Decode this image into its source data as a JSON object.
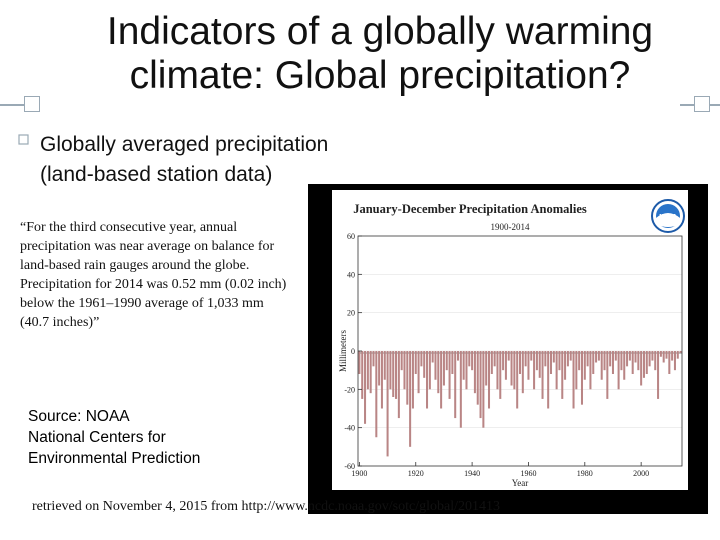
{
  "slide": {
    "title_line1": "Indicators of a globally warming",
    "title_line2": "climate: Global precipitation?",
    "subtitle_line1": "Globally averaged precipitation",
    "subtitle_line2": "(land-based station data)",
    "quote": "“For the third consecutive year, annual precipitation was near average on balance for land-based rain gauges around the globe. Precipitation for 2014 was 0.52 mm (0.02 inch) below the 1961–1990 average of 1,033 mm (40.7 inches)”",
    "source_line1": "Source: NOAA",
    "source_line2": "National Centers for",
    "source_line3": "Environmental Prediction",
    "retrieved": "retrieved on November 4, 2015 from http://www.ncdc.noaa.gov/sotc/global/201413",
    "accent_color": "#9aa9b5"
  },
  "chart_data": {
    "type": "bar",
    "title": "January-December Precipitation Anomalies",
    "subtitle": "1900-2014",
    "xlabel": "Year",
    "ylabel": "Millimeters",
    "xlim": [
      1900,
      2014
    ],
    "ylim": [
      -60,
      60
    ],
    "xticks": [
      "1900",
      "1920",
      "1940",
      "1960",
      "1980",
      "2000"
    ],
    "yticks": [
      "60",
      "40",
      "20",
      "0",
      "-20",
      "-40",
      "-60"
    ],
    "logo": "noaa-logo",
    "positive_color": "#3e9b2e",
    "negative_color": "#b98585",
    "years": [
      1900,
      1901,
      1902,
      1903,
      1904,
      1905,
      1906,
      1907,
      1908,
      1909,
      1910,
      1911,
      1912,
      1913,
      1914,
      1915,
      1916,
      1917,
      1918,
      1919,
      1920,
      1921,
      1922,
      1923,
      1924,
      1925,
      1926,
      1927,
      1928,
      1929,
      1930,
      1931,
      1932,
      1933,
      1934,
      1935,
      1936,
      1937,
      1938,
      1939,
      1940,
      1941,
      1942,
      1943,
      1944,
      1945,
      1946,
      1947,
      1948,
      1949,
      1950,
      1951,
      1952,
      1953,
      1954,
      1955,
      1956,
      1957,
      1958,
      1959,
      1960,
      1961,
      1962,
      1963,
      1964,
      1965,
      1966,
      1967,
      1968,
      1969,
      1970,
      1971,
      1972,
      1973,
      1974,
      1975,
      1976,
      1977,
      1978,
      1979,
      1980,
      1981,
      1982,
      1983,
      1984,
      1985,
      1986,
      1987,
      1988,
      1989,
      1990,
      1991,
      1992,
      1993,
      1994,
      1995,
      1996,
      1997,
      1998,
      1999,
      2000,
      2001,
      2002,
      2003,
      2004,
      2005,
      2006,
      2007,
      2008,
      2009,
      2010,
      2011,
      2012,
      2013,
      2014
    ],
    "values": [
      -12,
      -25,
      -38,
      -20,
      -22,
      -8,
      -45,
      -18,
      -30,
      -15,
      -55,
      -20,
      -24,
      -25,
      -35,
      -10,
      -20,
      -28,
      -50,
      -30,
      -12,
      -22,
      -8,
      -14,
      -30,
      -20,
      -6,
      -15,
      -22,
      -30,
      -18,
      -10,
      -25,
      -12,
      -35,
      -5,
      -40,
      -15,
      -20,
      -8,
      -10,
      -22,
      -28,
      -35,
      -40,
      -18,
      -30,
      -12,
      -8,
      -20,
      -25,
      -10,
      -15,
      -5,
      -18,
      -20,
      -30,
      -12,
      -22,
      -8,
      -15,
      -5,
      -20,
      -10,
      -14,
      -25,
      -8,
      -30,
      -12,
      -6,
      -20,
      -10,
      -25,
      -15,
      -8,
      -5,
      -30,
      -20,
      -10,
      -28,
      -15,
      -8,
      -20,
      -12,
      -6,
      -5,
      -15,
      -10,
      -25,
      -8,
      -12,
      -5,
      -20,
      -10,
      -15,
      -8,
      -5,
      -12,
      -6,
      -10,
      -18,
      -14,
      -12,
      -8,
      -5,
      -10,
      -25,
      -3,
      -6,
      -4,
      -12,
      -5,
      -10,
      -4,
      -1
    ]
  }
}
